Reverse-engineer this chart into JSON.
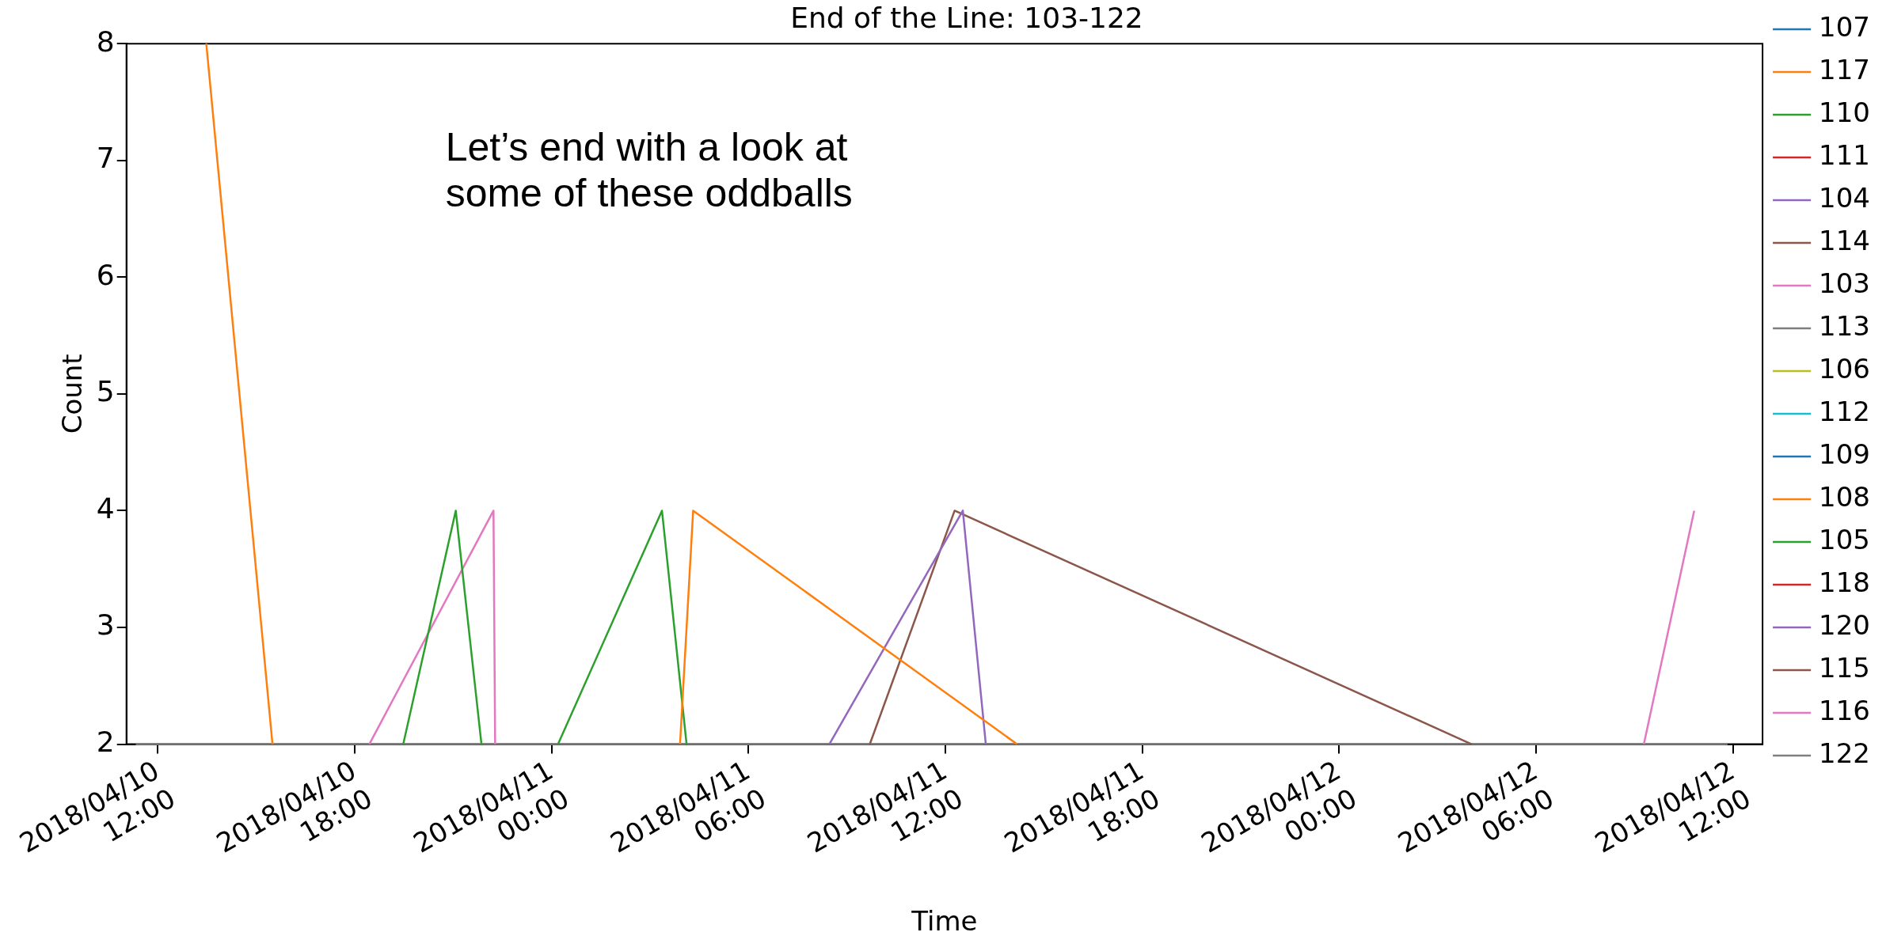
{
  "chart_data": {
    "type": "line",
    "title": "End of the Line: 103-122",
    "xlabel": "Time",
    "ylabel": "Count",
    "annotations": [
      "Let’s end with a look at some of these oddballs"
    ],
    "xlim": [
      "2018-04-10T11:03",
      "2018-04-12T12:54"
    ],
    "xticks": [
      {
        "value": "2018-04-10T12:00",
        "label": "2018/04/10 12:00"
      },
      {
        "value": "2018-04-10T18:00",
        "label": "2018/04/10 18:00"
      },
      {
        "value": "2018-04-11T00:00",
        "label": "2018/04/11 00:00"
      },
      {
        "value": "2018-04-11T06:00",
        "label": "2018/04/11 06:00"
      },
      {
        "value": "2018-04-11T12:00",
        "label": "2018/04/11 12:00"
      },
      {
        "value": "2018-04-11T18:00",
        "label": "2018/04/11 18:00"
      },
      {
        "value": "2018-04-12T00:00",
        "label": "2018/04/12 00:00"
      },
      {
        "value": "2018-04-12T06:00",
        "label": "2018/04/12 06:00"
      },
      {
        "value": "2018-04-12T12:00",
        "label": "2018/04/12 12:00"
      }
    ],
    "ylim": [
      2,
      8
    ],
    "yticks": [
      2,
      3,
      4,
      5,
      6,
      7,
      8
    ],
    "grid": false,
    "legend": "right",
    "marker": "none",
    "line_style": "solid",
    "series": [
      {
        "name": "107",
        "color": "#1f77b4"
      },
      {
        "name": "117",
        "color": "#ff7f0e",
        "x": [
          "2018-04-10T13:29",
          "2018-04-10T15:30",
          "2018-04-10T22:00",
          "2018-04-11T03:55",
          "2018-04-11T04:19",
          "2018-04-11T14:11"
        ],
        "values": [
          8,
          2,
          null,
          2,
          4,
          2
        ]
      },
      {
        "name": "110",
        "color": "#2ca02c",
        "x": [
          "2018-04-10T19:29",
          "2018-04-10T21:05",
          "2018-04-10T21:52",
          "2018-04-10T23:00",
          "2018-04-11T00:12",
          "2018-04-11T03:22",
          "2018-04-11T04:07"
        ],
        "values": [
          2,
          4,
          2,
          null,
          2,
          4,
          2
        ]
      },
      {
        "name": "111",
        "color": "#d62728"
      },
      {
        "name": "104",
        "color": "#9467bd",
        "x": [
          "2018-04-11T08:28",
          "2018-04-11T12:32",
          "2018-04-11T13:14"
        ],
        "values": [
          2,
          4,
          2
        ]
      },
      {
        "name": "114",
        "color": "#8c564b",
        "x": [
          "2018-04-11T09:42",
          "2018-04-11T12:17",
          "2018-04-12T04:02"
        ],
        "values": [
          2,
          4,
          2
        ]
      },
      {
        "name": "103",
        "color": "#e377c2",
        "x": [
          "2018-04-10T18:27",
          "2018-04-10T22:14",
          "2018-04-10T22:17",
          "2018-04-11T12:00",
          "2018-04-12T09:17",
          "2018-04-12T10:49"
        ],
        "values": [
          2,
          4,
          2,
          null,
          2,
          4
        ]
      },
      {
        "name": "113",
        "color": "#7f7f7f"
      },
      {
        "name": "106",
        "color": "#bcbd22"
      },
      {
        "name": "112",
        "color": "#17becf"
      },
      {
        "name": "109",
        "color": "#1f77b4"
      },
      {
        "name": "108",
        "color": "#ff7f0e"
      },
      {
        "name": "105",
        "color": "#2ca02c"
      },
      {
        "name": "118",
        "color": "#d62728"
      },
      {
        "name": "120",
        "color": "#9467bd"
      },
      {
        "name": "115",
        "color": "#8c564b"
      },
      {
        "name": "116",
        "color": "#e377c2"
      },
      {
        "name": "122",
        "color": "#7f7f7f",
        "x": [
          "2018-04-10T11:20",
          "2018-04-12T11:50"
        ],
        "values": [
          2,
          2
        ]
      }
    ]
  }
}
